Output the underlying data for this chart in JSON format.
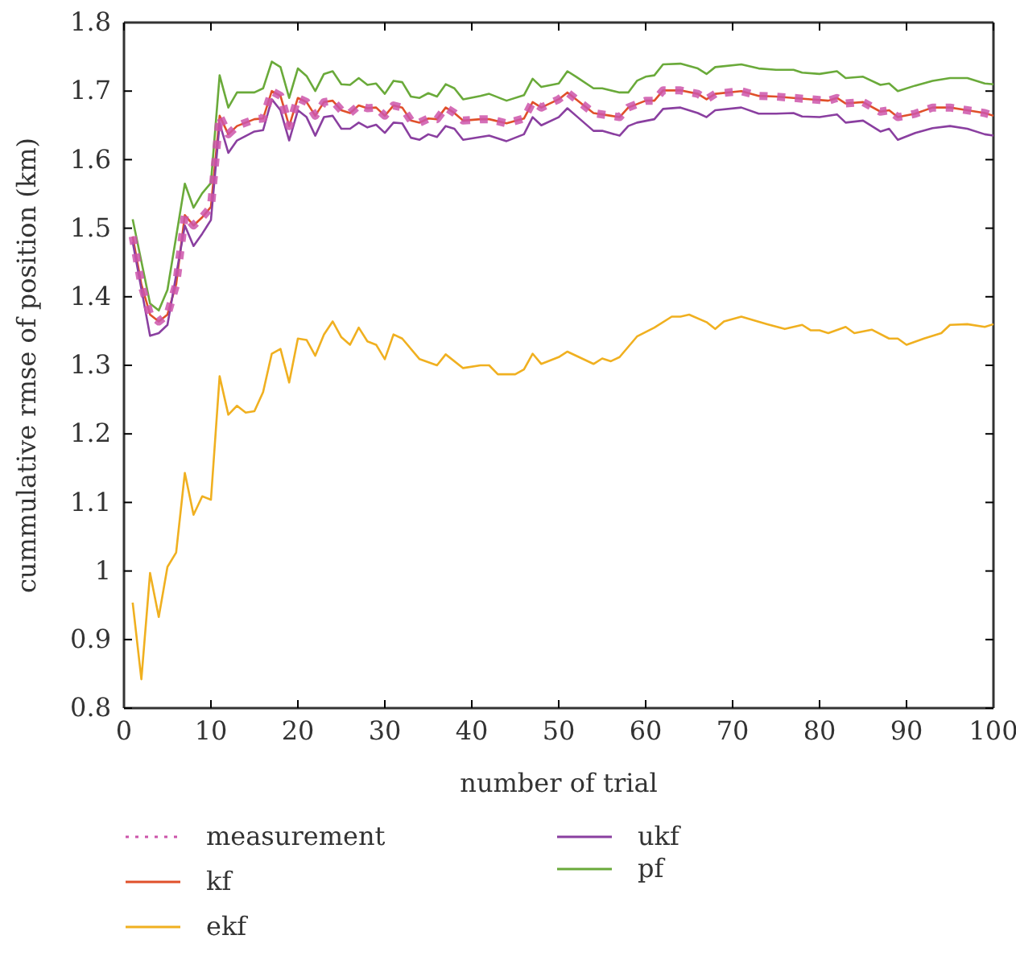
{
  "chart_data": {
    "type": "line",
    "xlabel": "number of trial",
    "ylabel": "cummulative rmse of position (km)",
    "xlim": [
      0,
      100
    ],
    "ylim": [
      0.8,
      1.8
    ],
    "xticks": [
      0,
      10,
      20,
      30,
      40,
      50,
      60,
      70,
      80,
      90,
      100
    ],
    "yticks": [
      0.8,
      0.9,
      1,
      1.1,
      1.2,
      1.3,
      1.4,
      1.5,
      1.6,
      1.7,
      1.8
    ],
    "grid": false,
    "legend": "bottom",
    "marker": "none",
    "series": [
      {
        "name": "measurement",
        "color": "#cc55aa",
        "line_style": "dotted",
        "x": [
          1,
          2,
          3,
          4,
          5,
          6,
          7,
          8,
          9,
          10,
          11,
          12,
          13,
          14,
          15,
          16,
          17,
          18,
          19,
          20,
          21,
          22,
          23,
          24,
          25,
          26,
          27,
          28,
          29,
          30,
          31,
          32,
          33,
          34,
          35,
          36,
          37,
          38,
          39,
          41,
          42,
          44,
          46,
          47,
          48,
          50,
          51,
          52,
          54,
          56,
          57,
          58,
          60,
          61,
          62,
          64,
          66,
          67,
          68,
          71,
          73,
          75,
          77,
          79,
          81,
          82,
          83,
          85,
          87,
          88,
          89,
          91,
          93,
          95,
          97,
          99,
          100
        ],
        "values": [
          1.488,
          1.418,
          1.374,
          1.364,
          1.374,
          1.418,
          1.519,
          1.504,
          1.516,
          1.531,
          1.664,
          1.637,
          1.649,
          1.654,
          1.659,
          1.66,
          1.7,
          1.693,
          1.649,
          1.69,
          1.684,
          1.664,
          1.684,
          1.686,
          1.672,
          1.668,
          1.679,
          1.675,
          1.676,
          1.664,
          1.679,
          1.676,
          1.657,
          1.654,
          1.66,
          1.659,
          1.676,
          1.668,
          1.657,
          1.659,
          1.659,
          1.653,
          1.66,
          1.684,
          1.676,
          1.688,
          1.698,
          1.688,
          1.668,
          1.664,
          1.662,
          1.676,
          1.686,
          1.686,
          1.701,
          1.701,
          1.696,
          1.688,
          1.696,
          1.7,
          1.693,
          1.692,
          1.69,
          1.688,
          1.686,
          1.69,
          1.682,
          1.684,
          1.67,
          1.672,
          1.662,
          1.667,
          1.676,
          1.676,
          1.672,
          1.668,
          1.664
        ]
      },
      {
        "name": "kf",
        "color": "#e0502a",
        "line_style": "solid",
        "x": [
          1,
          2,
          3,
          4,
          5,
          6,
          7,
          8,
          9,
          10,
          11,
          12,
          13,
          14,
          15,
          16,
          17,
          18,
          19,
          20,
          21,
          22,
          23,
          24,
          25,
          26,
          27,
          28,
          29,
          30,
          31,
          32,
          33,
          34,
          35,
          36,
          37,
          38,
          39,
          41,
          42,
          44,
          46,
          47,
          48,
          50,
          51,
          52,
          54,
          56,
          57,
          58,
          60,
          61,
          62,
          64,
          66,
          67,
          68,
          71,
          73,
          75,
          77,
          79,
          81,
          82,
          83,
          85,
          87,
          88,
          89,
          91,
          93,
          95,
          97,
          99,
          100
        ],
        "values": [
          1.488,
          1.418,
          1.374,
          1.364,
          1.374,
          1.418,
          1.519,
          1.504,
          1.516,
          1.531,
          1.664,
          1.637,
          1.649,
          1.654,
          1.659,
          1.66,
          1.7,
          1.693,
          1.649,
          1.69,
          1.684,
          1.664,
          1.684,
          1.686,
          1.672,
          1.668,
          1.679,
          1.675,
          1.676,
          1.664,
          1.679,
          1.676,
          1.657,
          1.654,
          1.66,
          1.659,
          1.676,
          1.668,
          1.657,
          1.659,
          1.659,
          1.653,
          1.66,
          1.684,
          1.676,
          1.688,
          1.698,
          1.688,
          1.668,
          1.664,
          1.662,
          1.676,
          1.686,
          1.686,
          1.701,
          1.701,
          1.696,
          1.688,
          1.696,
          1.7,
          1.693,
          1.692,
          1.69,
          1.688,
          1.686,
          1.69,
          1.682,
          1.684,
          1.67,
          1.672,
          1.662,
          1.667,
          1.676,
          1.676,
          1.672,
          1.668,
          1.664
        ]
      },
      {
        "name": "ekf",
        "color": "#f0b020",
        "line_style": "solid",
        "x": [
          1,
          2,
          3,
          4,
          5,
          6,
          7,
          8,
          9,
          10,
          11,
          12,
          13,
          14,
          15,
          16,
          17,
          18,
          19,
          20,
          21,
          22,
          23,
          24,
          25,
          26,
          27,
          28,
          29,
          30,
          31,
          32,
          34,
          36,
          37,
          39,
          41,
          42,
          43,
          45,
          46,
          47,
          48,
          50,
          51,
          54,
          55,
          56,
          57,
          59,
          61,
          63,
          64,
          65,
          67,
          68,
          69,
          71,
          74,
          76,
          78,
          79,
          80,
          81,
          83,
          84,
          86,
          88,
          89,
          90,
          92,
          94,
          95,
          97,
          99,
          100
        ],
        "values": [
          0.954,
          0.842,
          0.997,
          0.933,
          1.006,
          1.027,
          1.143,
          1.082,
          1.109,
          1.104,
          1.284,
          1.228,
          1.241,
          1.231,
          1.233,
          1.261,
          1.317,
          1.324,
          1.275,
          1.339,
          1.337,
          1.314,
          1.345,
          1.364,
          1.341,
          1.33,
          1.355,
          1.335,
          1.33,
          1.309,
          1.345,
          1.339,
          1.309,
          1.3,
          1.316,
          1.296,
          1.3,
          1.3,
          1.287,
          1.287,
          1.294,
          1.317,
          1.302,
          1.312,
          1.32,
          1.302,
          1.31,
          1.306,
          1.312,
          1.342,
          1.355,
          1.371,
          1.371,
          1.374,
          1.363,
          1.353,
          1.364,
          1.371,
          1.36,
          1.353,
          1.359,
          1.351,
          1.351,
          1.347,
          1.356,
          1.347,
          1.352,
          1.339,
          1.339,
          1.33,
          1.339,
          1.347,
          1.359,
          1.36,
          1.356,
          1.36
        ]
      },
      {
        "name": "ukf",
        "color": "#8a3fa0",
        "line_style": "solid",
        "x": [
          1,
          3,
          4,
          5,
          7,
          8,
          9,
          10,
          11,
          12,
          13,
          15,
          16,
          17,
          18,
          19,
          20,
          21,
          22,
          23,
          24,
          25,
          26,
          27,
          28,
          29,
          30,
          31,
          32,
          33,
          34,
          35,
          36,
          37,
          38,
          39,
          41,
          42,
          44,
          46,
          47,
          48,
          50,
          51,
          52,
          54,
          55,
          57,
          58,
          59,
          61,
          62,
          64,
          66,
          67,
          68,
          71,
          73,
          75,
          77,
          78,
          80,
          82,
          83,
          85,
          87,
          88,
          89,
          91,
          93,
          95,
          97,
          99,
          100
        ],
        "values": [
          1.48,
          1.343,
          1.347,
          1.359,
          1.504,
          1.474,
          1.492,
          1.512,
          1.653,
          1.61,
          1.628,
          1.641,
          1.643,
          1.688,
          1.672,
          1.628,
          1.672,
          1.662,
          1.635,
          1.662,
          1.664,
          1.645,
          1.645,
          1.654,
          1.647,
          1.651,
          1.639,
          1.654,
          1.653,
          1.632,
          1.629,
          1.637,
          1.633,
          1.649,
          1.645,
          1.629,
          1.633,
          1.635,
          1.627,
          1.637,
          1.662,
          1.65,
          1.662,
          1.675,
          1.664,
          1.642,
          1.642,
          1.635,
          1.649,
          1.654,
          1.659,
          1.674,
          1.676,
          1.668,
          1.662,
          1.672,
          1.676,
          1.667,
          1.667,
          1.668,
          1.663,
          1.662,
          1.666,
          1.654,
          1.657,
          1.641,
          1.645,
          1.629,
          1.639,
          1.646,
          1.649,
          1.645,
          1.637,
          1.635
        ]
      },
      {
        "name": "pf",
        "color": "#6aaa3a",
        "line_style": "solid",
        "x": [
          1,
          3,
          4,
          5,
          7,
          8,
          9,
          10,
          11,
          12,
          13,
          15,
          16,
          17,
          18,
          19,
          20,
          21,
          22,
          23,
          24,
          25,
          26,
          27,
          28,
          29,
          30,
          31,
          32,
          33,
          34,
          35,
          36,
          37,
          38,
          39,
          41,
          42,
          44,
          46,
          47,
          48,
          50,
          51,
          52,
          54,
          55,
          57,
          58,
          59,
          60,
          61,
          62,
          64,
          66,
          67,
          68,
          71,
          73,
          75,
          77,
          78,
          80,
          82,
          83,
          85,
          87,
          88,
          89,
          91,
          93,
          95,
          97,
          99,
          100
        ],
        "values": [
          1.513,
          1.39,
          1.38,
          1.41,
          1.565,
          1.53,
          1.551,
          1.566,
          1.723,
          1.676,
          1.698,
          1.698,
          1.704,
          1.743,
          1.735,
          1.69,
          1.733,
          1.722,
          1.7,
          1.725,
          1.729,
          1.71,
          1.709,
          1.719,
          1.709,
          1.711,
          1.696,
          1.715,
          1.713,
          1.692,
          1.69,
          1.697,
          1.692,
          1.71,
          1.704,
          1.688,
          1.693,
          1.696,
          1.686,
          1.694,
          1.718,
          1.706,
          1.711,
          1.729,
          1.721,
          1.704,
          1.704,
          1.698,
          1.698,
          1.715,
          1.721,
          1.723,
          1.739,
          1.74,
          1.733,
          1.725,
          1.735,
          1.739,
          1.733,
          1.731,
          1.731,
          1.727,
          1.725,
          1.729,
          1.719,
          1.721,
          1.709,
          1.711,
          1.7,
          1.708,
          1.715,
          1.719,
          1.719,
          1.711,
          1.71
        ]
      }
    ]
  }
}
